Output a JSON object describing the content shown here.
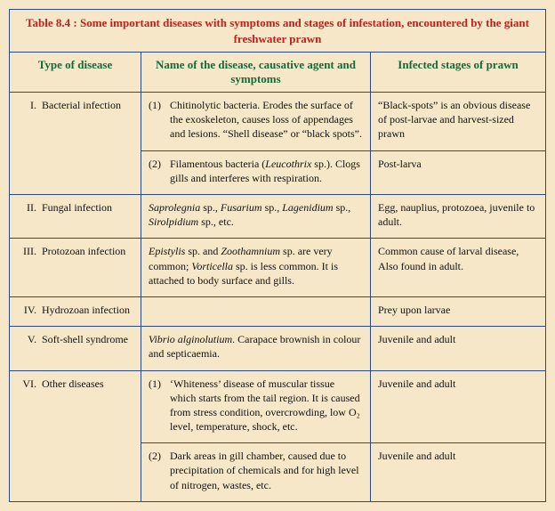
{
  "caption": "Table 8.4 : Some important diseases with symptoms and stages of infestation, encountered by the giant freshwater prawn",
  "headers": {
    "type": "Type of disease",
    "name": "Name of the disease, causative agent and symptoms",
    "stage": "Infected stages of prawn"
  },
  "rows": [
    {
      "type_num": "I.",
      "type_label": "Bacterial infection",
      "subs": [
        {
          "num": "(1)",
          "desc_html": "Chitinolytic bacteria. Erodes the surface of the exoskeleton, causes loss of appendages and lesions. “Shell disease” or “black spots”.",
          "stage": "“Black-spots” is an obvious disease of post-larvae and harvest-sized prawn"
        },
        {
          "num": "(2)",
          "desc_html": "Filamentous bacteria (<span class=\"ital\">Leucothrix</span> sp.). Clogs gills and interferes with respiration.",
          "stage": "Post-larva"
        }
      ]
    },
    {
      "type_num": "II.",
      "type_label": "Fungal infection",
      "subs": [
        {
          "num": "",
          "desc_html": "<span class=\"ital\">Saprolegnia</span> sp., <span class=\"ital\">Fusarium</span> sp., <span class=\"ital\">Lagenidium</span> sp., <span class=\"ital\">Sirolpidium</span> sp., etc.",
          "stage": "Egg, nauplius, protozoea, juvenile to adult."
        }
      ]
    },
    {
      "type_num": "III.",
      "type_label": "Protozoan infection",
      "subs": [
        {
          "num": "",
          "desc_html": "<span class=\"ital\">Epistylis</span> sp. and <span class=\"ital\">Zoothamnium</span> sp. are very common; <span class=\"ital\">Vorticella</span> sp. is less common. It is attached to body surface and gills.",
          "stage": "Common cause of larval disease, Also found in adult."
        }
      ]
    },
    {
      "type_num": "IV.",
      "type_label": "Hydrozoan infection",
      "subs": [
        {
          "num": "",
          "desc_html": "",
          "stage": "Prey upon larvae"
        }
      ]
    },
    {
      "type_num": "V.",
      "type_label": "Soft-shell syndrome",
      "subs": [
        {
          "num": "",
          "desc_html": "<span class=\"ital\">Vibrio alginolutium</span>. Carapace brownish in colour and septicaemia.",
          "stage": "Juvenile and adult"
        }
      ]
    },
    {
      "type_num": "VI.",
      "type_label": "Other diseases",
      "subs": [
        {
          "num": "(1)",
          "desc_html": "‘Whiteness’ disease of muscular tissue which starts from the tail region. It is caused from stress condition, overcrowding, low O₂ level, temperature, shock, etc.",
          "stage": "Juvenile and adult"
        },
        {
          "num": "(2)",
          "desc_html": "Dark areas in gill chamber, caused due to precipitation of chemicals and for high level of nitrogen, wastes, etc.",
          "stage": "Juvenile and adult"
        }
      ]
    }
  ]
}
